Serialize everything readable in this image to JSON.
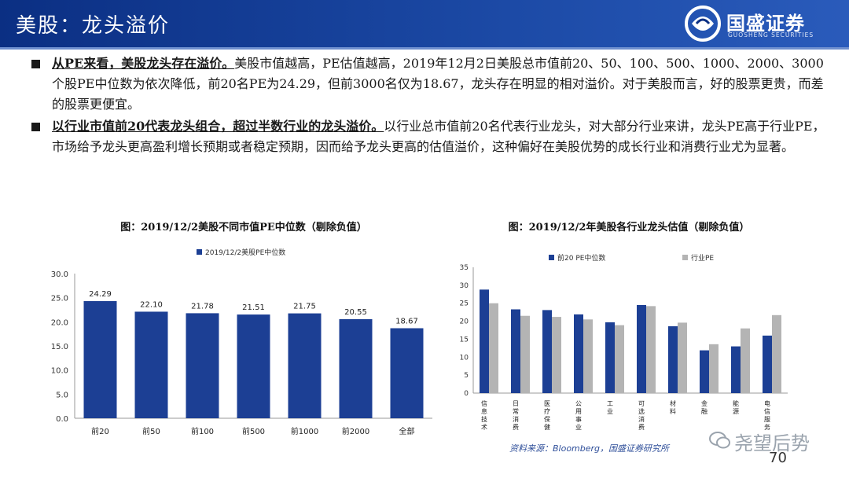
{
  "header": {
    "title": "美股：龙头溢价",
    "logo_text": "国盛证券",
    "logo_sub": "GUOSHENG SECURITIES",
    "brand_color": "#0b2f83"
  },
  "bullets": [
    {
      "lead": "从PE来看，美股龙头存在溢价。",
      "body": "美股市值越高，PE估值越高，2019年12月2日美股总市值前20、50、100、500、1000、2000、3000个股PE中位数为依次降低，前20名PE为24.29，但前3000名仅为18.67，龙头存在明显的相对溢价。对于美股而言，好的股票更贵，而差的股票更便宜。"
    },
    {
      "lead": "以行业市值前20代表龙头组合，超过半数行业的龙头溢价。",
      "body": "以行业总市值前20名代表行业龙头，对大部分行业来讲，龙头PE高于行业PE，市场给予龙头更高盈利增长预期或者稳定预期，因而给予龙头更高的估值溢价，这种偏好在美股优势的成长行业和消费行业尤为显著。"
    }
  ],
  "charts": {
    "left_title": "图：2019/12/2美股不同市值PE中位数（剔除负值）",
    "right_title": "图：2019/12/2年美股各行业龙头估值（剔除负值）"
  },
  "chart_data": [
    {
      "type": "bar",
      "title": "图：2019/12/2美股不同市值PE中位数（剔除负值）",
      "categories": [
        "前20",
        "前50",
        "前100",
        "前500",
        "前1000",
        "前2000",
        "全部"
      ],
      "series": [
        {
          "name": "2019/12/2美股PE中位数",
          "values": [
            24.29,
            22.1,
            21.78,
            21.51,
            21.75,
            20.55,
            18.67
          ],
          "color": "#1c3f94"
        }
      ],
      "data_labels": [
        "24.29",
        "22.10",
        "21.78",
        "21.51",
        "21.75",
        "20.55",
        "18.67"
      ],
      "ylim": [
        0,
        30
      ],
      "yticks": [
        "0.0",
        "5.0",
        "10.0",
        "15.0",
        "20.0",
        "25.0",
        "30.0"
      ],
      "legend": "top-left",
      "grid": false
    },
    {
      "type": "bar",
      "title": "图：2019/12/2年美股各行业龙头估值（剔除负值）",
      "categories": [
        "信息技术",
        "日常消费",
        "医疗保健",
        "公用事业",
        "工业",
        "可选消费",
        "材料",
        "金融",
        "能源",
        "电信服务"
      ],
      "series": [
        {
          "name": "前20 PE中位数",
          "values": [
            28.8,
            23.3,
            23.1,
            21.9,
            19.7,
            24.5,
            18.6,
            11.9,
            13.0,
            16.0
          ],
          "color": "#1c3f94"
        },
        {
          "name": "行业PE",
          "values": [
            25.0,
            21.5,
            21.2,
            20.5,
            18.9,
            24.2,
            19.6,
            13.6,
            18.0,
            21.7
          ],
          "color": "#b4b4b4"
        }
      ],
      "ylim": [
        0,
        35
      ],
      "yticks": [
        "0",
        "5",
        "10",
        "15",
        "20",
        "25",
        "30",
        "35"
      ],
      "legend": "top",
      "grid": false
    }
  ],
  "source": "资料来源：Bloomberg，国盛证券研究所",
  "watermark": "尧望后势",
  "page_number": "70"
}
